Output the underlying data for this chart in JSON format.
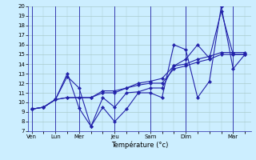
{
  "background_color": "#cceeff",
  "grid_color": "#aacccc",
  "line_color": "#2222aa",
  "xlabel": "Température (°c)",
  "ylim": [
    7,
    20
  ],
  "yticks": [
    7,
    8,
    9,
    10,
    11,
    12,
    13,
    14,
    15,
    16,
    17,
    18,
    19,
    20
  ],
  "day_labels": [
    "Ven",
    "Lun",
    "Mer",
    "Jeu",
    "Sam",
    "Dim",
    "Mar"
  ],
  "day_positions": [
    0,
    2,
    4,
    7,
    10,
    13,
    17
  ],
  "series": [
    [
      9.3,
      9.5,
      10.3,
      13.0,
      9.4,
      7.5,
      9.5,
      8.0,
      9.3,
      11.0,
      11.0,
      10.5,
      16.0,
      15.5,
      10.5,
      12.2,
      20.0,
      13.5,
      15.0
    ],
    [
      9.3,
      9.5,
      10.3,
      12.7,
      11.5,
      7.5,
      10.5,
      9.5,
      11.0,
      11.1,
      11.5,
      11.5,
      13.8,
      14.5,
      16.0,
      14.6,
      19.5,
      15.0,
      15.0
    ],
    [
      9.3,
      9.5,
      10.3,
      10.5,
      10.5,
      10.5,
      11.0,
      11.0,
      11.5,
      11.8,
      12.0,
      12.0,
      13.5,
      13.8,
      14.2,
      14.5,
      15.0,
      15.0,
      15.0
    ],
    [
      9.3,
      9.5,
      10.3,
      10.5,
      10.5,
      10.5,
      11.2,
      11.2,
      11.5,
      12.0,
      12.2,
      12.5,
      13.8,
      14.0,
      14.5,
      14.8,
      15.2,
      15.2,
      15.2
    ]
  ],
  "x_positions": [
    0,
    1,
    2,
    3,
    4,
    5,
    6,
    7,
    8,
    9,
    10,
    11,
    12,
    13,
    14,
    15,
    16,
    17,
    18
  ],
  "tick_fontsize": 5.0,
  "xlabel_fontsize": 6.0,
  "linewidth": 0.8,
  "markersize": 2.2
}
